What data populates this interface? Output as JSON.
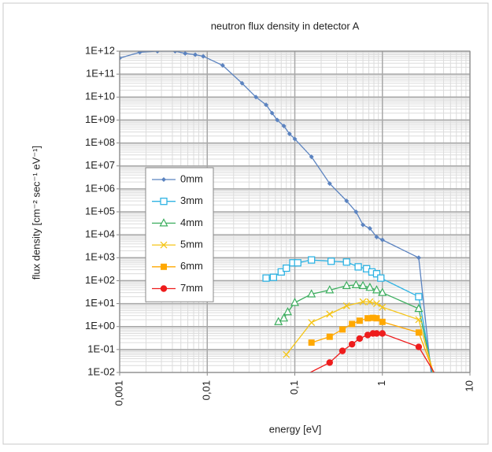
{
  "chart_data": {
    "type": "line",
    "title": "neutron flux density in detector A",
    "xlabel": "energy [eV]",
    "ylabel": "flux density [cm⁻² sec⁻¹ eV⁻¹]",
    "xscale": "log",
    "yscale": "log",
    "xlim": [
      0.001,
      10
    ],
    "ylim": [
      0.01,
      1000000000000
    ],
    "xticks": [
      {
        "value": 0.001,
        "label": "0,001"
      },
      {
        "value": 0.01,
        "label": "0,01"
      },
      {
        "value": 0.1,
        "label": "0,1"
      },
      1,
      10
    ],
    "yticks": [
      {
        "value": 1000000000000,
        "label": "1E+12"
      },
      {
        "value": 100000000000,
        "label": "1E+11"
      },
      {
        "value": 10000000000,
        "label": "1E+10"
      },
      {
        "value": 1000000000,
        "label": "1E+09"
      },
      {
        "value": 100000000,
        "label": "1E+08"
      },
      {
        "value": 10000000,
        "label": "1E+07"
      },
      {
        "value": 1000000,
        "label": "1E+06"
      },
      {
        "value": 100000,
        "label": "1E+05"
      },
      {
        "value": 10000,
        "label": "1E+04"
      },
      {
        "value": 1000,
        "label": "1E+03"
      },
      {
        "value": 100,
        "label": "1E+02"
      },
      {
        "value": 10,
        "label": "1E+01"
      },
      {
        "value": 1,
        "label": "1E+00"
      },
      {
        "value": 0.1,
        "label": "1E-01"
      },
      {
        "value": 0.01,
        "label": "1E-02"
      }
    ],
    "grid": true,
    "minor_grid": true,
    "legend": "middle-left",
    "series": [
      {
        "name": "0mm",
        "color": "#5b83c0",
        "marker": "diamond",
        "x": [
          0.001,
          0.0017,
          0.0027,
          0.0043,
          0.0056,
          0.0073,
          0.009,
          0.015,
          0.025,
          0.036,
          0.047,
          0.055,
          0.063,
          0.075,
          0.087,
          0.1,
          0.155,
          0.25,
          0.39,
          0.5,
          0.6,
          0.72,
          0.86,
          1,
          2.6,
          3.6
        ],
        "values": [
          500000000000,
          900000000000,
          1000000000000,
          1000000000000,
          800000000000,
          700000000000,
          600000000000,
          240000000000,
          40000000000,
          10000000000,
          4600000000,
          2000000000,
          1000000000,
          550000000,
          250000000,
          150000000,
          25000000,
          1700000,
          300000,
          100000,
          27000,
          19000,
          8000,
          6000,
          1000,
          0.01
        ]
      },
      {
        "name": "3mm",
        "color": "#2fb3e3",
        "marker": "square-open",
        "x": [
          0.047,
          0.057,
          0.07,
          0.08,
          0.095,
          0.108,
          0.155,
          0.26,
          0.39,
          0.53,
          0.66,
          0.76,
          0.86,
          0.96,
          2.6,
          3.7
        ],
        "values": [
          130,
          140,
          240,
          350,
          600,
          600,
          800,
          700,
          650,
          400,
          330,
          240,
          200,
          130,
          20,
          0.01
        ]
      },
      {
        "name": "4mm",
        "color": "#3dae5f",
        "marker": "triangle-open",
        "x": [
          0.065,
          0.075,
          0.083,
          0.1,
          0.155,
          0.25,
          0.39,
          0.5,
          0.6,
          0.72,
          0.86,
          1,
          2.6,
          3.75
        ],
        "values": [
          1.6,
          2.3,
          4.3,
          11,
          26,
          39,
          60,
          65,
          60,
          50,
          39,
          30,
          6,
          0.01
        ]
      },
      {
        "name": "5mm",
        "color": "#f5c518",
        "marker": "x",
        "x": [
          0.08,
          0.155,
          0.25,
          0.39,
          0.6,
          0.72,
          0.86,
          1,
          2.6,
          3.8
        ],
        "values": [
          0.06,
          1.5,
          3.5,
          8,
          12,
          12,
          10,
          7,
          2,
          0.01
        ]
      },
      {
        "name": "6mm",
        "color": "#ffa800",
        "marker": "square",
        "x": [
          0.155,
          0.25,
          0.35,
          0.45,
          0.55,
          0.68,
          0.78,
          0.86,
          1,
          2.6,
          3.85
        ],
        "values": [
          0.2,
          0.36,
          0.75,
          1.3,
          1.8,
          2.3,
          2.4,
          2.3,
          1.6,
          0.55,
          0.01
        ]
      },
      {
        "name": "7mm",
        "color": "#ee1c1c",
        "marker": "circle",
        "x": [
          0.15,
          0.25,
          0.35,
          0.45,
          0.55,
          0.68,
          0.78,
          0.86,
          1,
          2.6,
          3.9
        ],
        "values": [
          0.01,
          0.027,
          0.087,
          0.17,
          0.3,
          0.43,
          0.5,
          0.5,
          0.5,
          0.13,
          0.01
        ]
      }
    ]
  }
}
